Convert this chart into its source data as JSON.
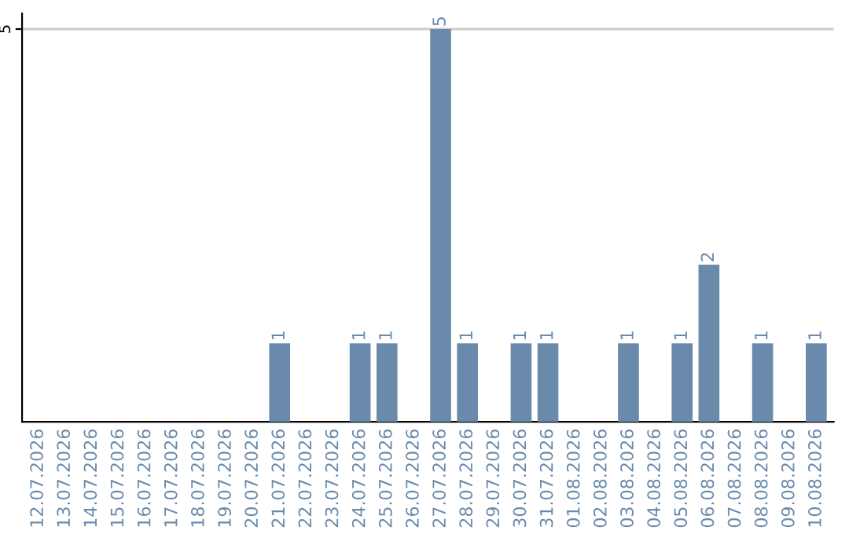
{
  "chart_data": {
    "type": "bar",
    "categories": [
      "12.07.2026",
      "13.07.2026",
      "14.07.2026",
      "15.07.2026",
      "16.07.2026",
      "17.07.2026",
      "18.07.2026",
      "19.07.2026",
      "20.07.2026",
      "21.07.2026",
      "22.07.2026",
      "23.07.2026",
      "24.07.2026",
      "25.07.2026",
      "26.07.2026",
      "27.07.2026",
      "28.07.2026",
      "29.07.2026",
      "30.07.2026",
      "31.07.2026",
      "01.08.2026",
      "02.08.2026",
      "03.08.2026",
      "04.08.2026",
      "05.08.2026",
      "06.08.2026",
      "07.08.2026",
      "08.08.2026",
      "09.08.2026",
      "10.08.2026"
    ],
    "values": [
      0,
      0,
      0,
      0,
      0,
      0,
      0,
      0,
      0,
      1,
      0,
      0,
      1,
      1,
      0,
      5,
      1,
      0,
      1,
      1,
      0,
      0,
      1,
      0,
      1,
      2,
      0,
      1,
      0,
      1
    ],
    "value_labels": [
      null,
      null,
      null,
      null,
      null,
      null,
      null,
      null,
      null,
      "1",
      null,
      null,
      "1",
      "1",
      null,
      "5",
      "1",
      null,
      "1",
      "1",
      null,
      null,
      "1",
      null,
      "1",
      "2",
      null,
      "1",
      null,
      "1"
    ],
    "color": "#6a8aab",
    "ylim": [
      0,
      5.2
    ],
    "yticks": [
      5
    ],
    "grid": "y"
  }
}
